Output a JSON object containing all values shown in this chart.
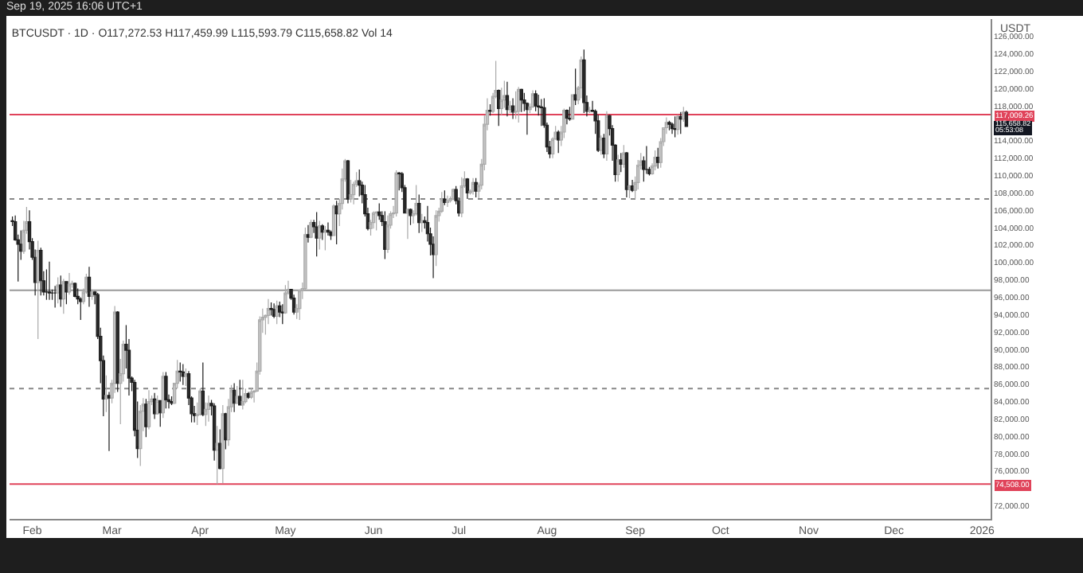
{
  "chart_data": {
    "type": "candlestick",
    "title": "BTCUSDT · 1D · O117,272.53 H117,459.99 L115,593.79 C115,658.82 Vol 14",
    "subtitle": "Sep 19, 2025 16:06 UTC+1",
    "ylabel": "USDT",
    "x": [
      "2025-01-25",
      "2025-01-26",
      "2025-01-27",
      "2025-01-28",
      "2025-01-29",
      "2025-01-30",
      "2025-01-31",
      "2025-02-01",
      "2025-02-02",
      "2025-02-03",
      "2025-02-04",
      "2025-02-05",
      "2025-02-06",
      "2025-02-07",
      "2025-02-08",
      "2025-02-09",
      "2025-02-10",
      "2025-02-11",
      "2025-02-12",
      "2025-02-13",
      "2025-02-14",
      "2025-02-15",
      "2025-02-16",
      "2025-02-17",
      "2025-02-18",
      "2025-02-19",
      "2025-02-20",
      "2025-02-21",
      "2025-02-22",
      "2025-02-23",
      "2025-02-24",
      "2025-02-25",
      "2025-02-26",
      "2025-02-27",
      "2025-02-28",
      "2025-03-01",
      "2025-03-02",
      "2025-03-03",
      "2025-03-04",
      "2025-03-05",
      "2025-03-06",
      "2025-03-07",
      "2025-03-08",
      "2025-03-09",
      "2025-03-10",
      "2025-03-11",
      "2025-03-12",
      "2025-03-13",
      "2025-03-14",
      "2025-03-15",
      "2025-03-16",
      "2025-03-17",
      "2025-03-18",
      "2025-03-19",
      "2025-03-20",
      "2025-03-21",
      "2025-03-22",
      "2025-03-23",
      "2025-03-24",
      "2025-03-25",
      "2025-03-26",
      "2025-03-27",
      "2025-03-28",
      "2025-03-29",
      "2025-03-30",
      "2025-03-31",
      "2025-04-01",
      "2025-04-02",
      "2025-04-03",
      "2025-04-04",
      "2025-04-05",
      "2025-04-06",
      "2025-04-07",
      "2025-04-08",
      "2025-04-09",
      "2025-04-10",
      "2025-04-11",
      "2025-04-12",
      "2025-04-13",
      "2025-04-14",
      "2025-04-15",
      "2025-04-16",
      "2025-04-17",
      "2025-04-18",
      "2025-04-19",
      "2025-04-20",
      "2025-04-21",
      "2025-04-22",
      "2025-04-23",
      "2025-04-24",
      "2025-04-25",
      "2025-04-26",
      "2025-04-27",
      "2025-04-28",
      "2025-04-29",
      "2025-04-30",
      "2025-05-01",
      "2025-05-02",
      "2025-05-03",
      "2025-05-04",
      "2025-05-05",
      "2025-05-06",
      "2025-05-07",
      "2025-05-08",
      "2025-05-09",
      "2025-05-10",
      "2025-05-11",
      "2025-05-12",
      "2025-05-13",
      "2025-05-14",
      "2025-05-15",
      "2025-05-16",
      "2025-05-17",
      "2025-05-18",
      "2025-05-19",
      "2025-05-20",
      "2025-05-21",
      "2025-05-22",
      "2025-05-23",
      "2025-05-24",
      "2025-05-25",
      "2025-05-26",
      "2025-05-27",
      "2025-05-28",
      "2025-05-29",
      "2025-05-30",
      "2025-05-31",
      "2025-06-01",
      "2025-06-02",
      "2025-06-03",
      "2025-06-04",
      "2025-06-05",
      "2025-06-06",
      "2025-06-07",
      "2025-06-08",
      "2025-06-09",
      "2025-06-10",
      "2025-06-11",
      "2025-06-12",
      "2025-06-13",
      "2025-06-14",
      "2025-06-15",
      "2025-06-16",
      "2025-06-17",
      "2025-06-18",
      "2025-06-19",
      "2025-06-20",
      "2025-06-21",
      "2025-06-22",
      "2025-06-23",
      "2025-06-24",
      "2025-06-25",
      "2025-06-26",
      "2025-06-27",
      "2025-06-28",
      "2025-06-29",
      "2025-06-30",
      "2025-07-01",
      "2025-07-02",
      "2025-07-03",
      "2025-07-04",
      "2025-07-05",
      "2025-07-06",
      "2025-07-07",
      "2025-07-08",
      "2025-07-09",
      "2025-07-10",
      "2025-07-11",
      "2025-07-12",
      "2025-07-13",
      "2025-07-14",
      "2025-07-15",
      "2025-07-16",
      "2025-07-17",
      "2025-07-18",
      "2025-07-19",
      "2025-07-20",
      "2025-07-21",
      "2025-07-22",
      "2025-07-23",
      "2025-07-24",
      "2025-07-25",
      "2025-07-26",
      "2025-07-27",
      "2025-07-28",
      "2025-07-29",
      "2025-07-30",
      "2025-07-31",
      "2025-08-01",
      "2025-08-02",
      "2025-08-03",
      "2025-08-04",
      "2025-08-05",
      "2025-08-06",
      "2025-08-07",
      "2025-08-08",
      "2025-08-09",
      "2025-08-10",
      "2025-08-11",
      "2025-08-12",
      "2025-08-13",
      "2025-08-14",
      "2025-08-15",
      "2025-08-16",
      "2025-08-17",
      "2025-08-18",
      "2025-08-19",
      "2025-08-20",
      "2025-08-21",
      "2025-08-22",
      "2025-08-23",
      "2025-08-24",
      "2025-08-25",
      "2025-08-26",
      "2025-08-27",
      "2025-08-28",
      "2025-08-29",
      "2025-08-30",
      "2025-08-31",
      "2025-09-01",
      "2025-09-02",
      "2025-09-03",
      "2025-09-04",
      "2025-09-05",
      "2025-09-06",
      "2025-09-07",
      "2025-09-08",
      "2025-09-09",
      "2025-09-10",
      "2025-09-11",
      "2025-09-12",
      "2025-09-13",
      "2025-09-14",
      "2025-09-15",
      "2025-09-16",
      "2025-09-17",
      "2025-09-18",
      "2025-09-19"
    ],
    "ohlc": [
      [
        104800,
        105300,
        104200,
        104700
      ],
      [
        104700,
        105400,
        102500,
        102600
      ],
      [
        102600,
        103200,
        97800,
        102100
      ],
      [
        102100,
        103700,
        100300,
        101300
      ],
      [
        101300,
        104800,
        101000,
        103700
      ],
      [
        103700,
        106400,
        103300,
        104700
      ],
      [
        104700,
        106000,
        101500,
        102400
      ],
      [
        102400,
        102800,
        100300,
        100600
      ],
      [
        100600,
        101500,
        96200,
        97700
      ],
      [
        97700,
        102500,
        91200,
        101400
      ],
      [
        101400,
        101700,
        96200,
        97900
      ],
      [
        97900,
        99000,
        96200,
        96600
      ],
      [
        96600,
        99200,
        95700,
        96600
      ],
      [
        96600,
        100100,
        95700,
        96500
      ],
      [
        96500,
        96900,
        95700,
        96500
      ],
      [
        96500,
        97300,
        94800,
        96500
      ],
      [
        96500,
        98300,
        95300,
        97400
      ],
      [
        97400,
        98500,
        94900,
        95800
      ],
      [
        95800,
        98100,
        94100,
        97800
      ],
      [
        97800,
        97800,
        95200,
        96600
      ],
      [
        96600,
        98800,
        96300,
        97500
      ],
      [
        97500,
        97900,
        97100,
        97600
      ],
      [
        97600,
        97700,
        96000,
        96100
      ],
      [
        96100,
        97000,
        95200,
        95800
      ],
      [
        95800,
        96000,
        93400,
        95500
      ],
      [
        95500,
        97000,
        95200,
        96600
      ],
      [
        96600,
        98700,
        96400,
        98300
      ],
      [
        98300,
        99500,
        94900,
        96100
      ],
      [
        96100,
        96900,
        95700,
        96600
      ],
      [
        96600,
        96700,
        95200,
        96300
      ],
      [
        96300,
        96500,
        91200,
        91500
      ],
      [
        91500,
        92500,
        86100,
        88700
      ],
      [
        88700,
        89300,
        82300,
        84300
      ],
      [
        84300,
        87000,
        82800,
        84700
      ],
      [
        84700,
        85100,
        78300,
        84400
      ],
      [
        84400,
        86500,
        83800,
        86100
      ],
      [
        86100,
        95000,
        85000,
        94300
      ],
      [
        94300,
        94400,
        85100,
        86100
      ],
      [
        86100,
        88900,
        81400,
        87200
      ],
      [
        87200,
        91000,
        86300,
        90600
      ],
      [
        90600,
        92800,
        87800,
        89900
      ],
      [
        89900,
        91200,
        84700,
        86700
      ],
      [
        86700,
        86900,
        85200,
        86200
      ],
      [
        86200,
        86500,
        80000,
        80700
      ],
      [
        80700,
        84000,
        77500,
        78600
      ],
      [
        78600,
        83600,
        76600,
        82900
      ],
      [
        82900,
        84400,
        80600,
        83700
      ],
      [
        83700,
        84300,
        79900,
        81100
      ],
      [
        81100,
        85300,
        80800,
        84000
      ],
      [
        84000,
        84700,
        83600,
        84300
      ],
      [
        84300,
        85000,
        82000,
        82600
      ],
      [
        82600,
        84700,
        82500,
        84100
      ],
      [
        84100,
        84100,
        81100,
        82700
      ],
      [
        82700,
        87400,
        82100,
        86900
      ],
      [
        86900,
        87400,
        83200,
        84200
      ],
      [
        84200,
        84800,
        83200,
        84000
      ],
      [
        84000,
        84600,
        83600,
        83800
      ],
      [
        83800,
        86100,
        83700,
        86100
      ],
      [
        86100,
        88800,
        85500,
        87500
      ],
      [
        87500,
        88500,
        86300,
        87400
      ],
      [
        87400,
        88300,
        85900,
        86900
      ],
      [
        86900,
        87800,
        85800,
        87200
      ],
      [
        87200,
        87500,
        83600,
        84400
      ],
      [
        84400,
        84600,
        81600,
        82600
      ],
      [
        82600,
        83500,
        81600,
        82400
      ],
      [
        82400,
        83900,
        81300,
        82500
      ],
      [
        82500,
        85500,
        82400,
        85200
      ],
      [
        85200,
        88500,
        82300,
        82500
      ],
      [
        82500,
        83900,
        81200,
        83100
      ],
      [
        83100,
        84700,
        81700,
        83800
      ],
      [
        83800,
        84200,
        82400,
        83500
      ],
      [
        83500,
        83800,
        77200,
        78400
      ],
      [
        78400,
        81200,
        74500,
        79200
      ],
      [
        79200,
        80800,
        76200,
        76300
      ],
      [
        76300,
        83600,
        74600,
        82600
      ],
      [
        82600,
        82700,
        78500,
        79600
      ],
      [
        79600,
        84300,
        78900,
        83400
      ],
      [
        83400,
        85900,
        82800,
        85300
      ],
      [
        85300,
        86100,
        82800,
        83800
      ],
      [
        83800,
        85800,
        83700,
        84600
      ],
      [
        84600,
        86500,
        83600,
        83600
      ],
      [
        83600,
        86500,
        83100,
        84000
      ],
      [
        84000,
        85500,
        83800,
        84900
      ],
      [
        84900,
        85100,
        84300,
        84500
      ],
      [
        84500,
        85600,
        84300,
        85100
      ],
      [
        85100,
        85300,
        83900,
        85200
      ],
      [
        85200,
        88500,
        85100,
        87500
      ],
      [
        87500,
        93800,
        87100,
        93400
      ],
      [
        93400,
        94700,
        91900,
        93700
      ],
      [
        93700,
        94000,
        91700,
        93900
      ],
      [
        93900,
        95800,
        92900,
        94700
      ],
      [
        94700,
        95400,
        93900,
        94600
      ],
      [
        94600,
        95300,
        93600,
        93800
      ],
      [
        93800,
        95600,
        92900,
        95000
      ],
      [
        95000,
        95500,
        93700,
        94300
      ],
      [
        94300,
        95200,
        92900,
        94200
      ],
      [
        94200,
        97400,
        94100,
        96500
      ],
      [
        96500,
        97900,
        96300,
        96900
      ],
      [
        96900,
        96900,
        95700,
        95900
      ],
      [
        95900,
        96300,
        94000,
        94300
      ],
      [
        94300,
        95200,
        93500,
        94700
      ],
      [
        94700,
        96900,
        93400,
        96800
      ],
      [
        96800,
        97700,
        95800,
        97000
      ],
      [
        97000,
        104000,
        96900,
        103200
      ],
      [
        103200,
        104300,
        102300,
        102900
      ],
      [
        102900,
        104900,
        102800,
        104600
      ],
      [
        104600,
        104900,
        103400,
        104100
      ],
      [
        104100,
        105800,
        100700,
        102800
      ],
      [
        102800,
        104800,
        101500,
        104200
      ],
      [
        104200,
        104400,
        102600,
        103500
      ],
      [
        103500,
        104200,
        101400,
        103700
      ],
      [
        103700,
        104600,
        103100,
        103500
      ],
      [
        103500,
        103700,
        102600,
        103100
      ],
      [
        103100,
        106700,
        103100,
        106500
      ],
      [
        106500,
        107100,
        102100,
        105600
      ],
      [
        105600,
        107300,
        104200,
        106800
      ],
      [
        106800,
        110800,
        106100,
        109600
      ],
      [
        109600,
        111900,
        109300,
        111700
      ],
      [
        111700,
        111800,
        106800,
        107300
      ],
      [
        107300,
        109500,
        106900,
        107800
      ],
      [
        107800,
        109300,
        106700,
        109000
      ],
      [
        109000,
        110400,
        108700,
        109400
      ],
      [
        109400,
        110700,
        107600,
        108900
      ],
      [
        108900,
        109300,
        106800,
        107800
      ],
      [
        107800,
        108900,
        105300,
        105600
      ],
      [
        105600,
        106300,
        103700,
        103900
      ],
      [
        103900,
        104900,
        103100,
        104600
      ],
      [
        104600,
        105900,
        103900,
        105700
      ],
      [
        105700,
        105900,
        103700,
        105800
      ],
      [
        105800,
        106800,
        104900,
        105400
      ],
      [
        105400,
        105900,
        104200,
        104700
      ],
      [
        104700,
        105900,
        100400,
        101500
      ],
      [
        101500,
        105400,
        101100,
        104300
      ],
      [
        104300,
        105900,
        103900,
        105600
      ],
      [
        105600,
        106500,
        105100,
        105700
      ],
      [
        105700,
        110600,
        105300,
        110300
      ],
      [
        110300,
        110400,
        108300,
        110200
      ],
      [
        110200,
        110400,
        108100,
        108600
      ],
      [
        108600,
        108900,
        105700,
        105700
      ],
      [
        105700,
        106200,
        102700,
        106100
      ],
      [
        106100,
        106200,
        104300,
        105400
      ],
      [
        105400,
        106000,
        104500,
        105600
      ],
      [
        105600,
        108900,
        105400,
        106800
      ],
      [
        106800,
        107800,
        103400,
        104600
      ],
      [
        104600,
        105600,
        103500,
        104800
      ],
      [
        104800,
        105300,
        103900,
        104600
      ],
      [
        104600,
        106500,
        102400,
        103300
      ],
      [
        103300,
        104000,
        100800,
        102100
      ],
      [
        102100,
        103000,
        98200,
        100900
      ],
      [
        100900,
        106000,
        99600,
        105400
      ],
      [
        105400,
        106300,
        104700,
        105900
      ],
      [
        105900,
        108100,
        105700,
        107300
      ],
      [
        107300,
        108300,
        106600,
        106900
      ],
      [
        106900,
        107700,
        106400,
        107100
      ],
      [
        107100,
        107600,
        106900,
        107300
      ],
      [
        107300,
        108500,
        107200,
        108400
      ],
      [
        108400,
        108800,
        106700,
        107100
      ],
      [
        107100,
        107500,
        105300,
        105700
      ],
      [
        105700,
        109800,
        105200,
        108800
      ],
      [
        108800,
        110500,
        108600,
        109600
      ],
      [
        109600,
        109700,
        107300,
        108000
      ],
      [
        108000,
        108400,
        107800,
        108200
      ],
      [
        108200,
        109700,
        107800,
        109200
      ],
      [
        109200,
        109700,
        107500,
        108200
      ],
      [
        108200,
        109200,
        107400,
        108900
      ],
      [
        108900,
        111900,
        108400,
        111300
      ],
      [
        111300,
        116900,
        110600,
        115900
      ],
      [
        115900,
        118900,
        115200,
        117500
      ],
      [
        117500,
        118200,
        116900,
        117400
      ],
      [
        117400,
        119500,
        117200,
        119100
      ],
      [
        119100,
        123200,
        118900,
        119800
      ],
      [
        119800,
        119900,
        115700,
        117700
      ],
      [
        117700,
        120100,
        117000,
        118700
      ],
      [
        118700,
        120900,
        117800,
        119200
      ],
      [
        119200,
        120800,
        116800,
        117600
      ],
      [
        117600,
        118600,
        117200,
        118000
      ],
      [
        118000,
        118900,
        116500,
        117300
      ],
      [
        117300,
        119700,
        116500,
        117400
      ],
      [
        117400,
        120200,
        116100,
        119900
      ],
      [
        119900,
        120000,
        117300,
        118700
      ],
      [
        118700,
        119500,
        117400,
        118300
      ],
      [
        118300,
        118400,
        114700,
        117600
      ],
      [
        117600,
        118300,
        117200,
        117900
      ],
      [
        117900,
        119800,
        117800,
        119400
      ],
      [
        119400,
        119800,
        117400,
        118000
      ],
      [
        118000,
        119300,
        116900,
        117900
      ],
      [
        117900,
        118800,
        115700,
        117800
      ],
      [
        117800,
        118900,
        115500,
        115800
      ],
      [
        115800,
        116100,
        112700,
        113300
      ],
      [
        113300,
        114000,
        112000,
        112500
      ],
      [
        112500,
        114400,
        112000,
        114200
      ],
      [
        114200,
        115700,
        114100,
        115000
      ],
      [
        115000,
        115200,
        112600,
        114100
      ],
      [
        114100,
        115700,
        113400,
        115000
      ],
      [
        115000,
        117700,
        114300,
        117500
      ],
      [
        117500,
        117600,
        115900,
        116600
      ],
      [
        116600,
        117900,
        116300,
        116500
      ],
      [
        116500,
        119300,
        116500,
        119300
      ],
      [
        119300,
        122300,
        118100,
        118700
      ],
      [
        118700,
        120300,
        118200,
        120100
      ],
      [
        120100,
        123700,
        118900,
        123300
      ],
      [
        123300,
        124500,
        117200,
        118400
      ],
      [
        118400,
        119200,
        116800,
        117400
      ],
      [
        117400,
        117900,
        117200,
        117500
      ],
      [
        117500,
        118600,
        117300,
        117400
      ],
      [
        117400,
        117600,
        114800,
        116300
      ],
      [
        116300,
        117000,
        112700,
        112900
      ],
      [
        112900,
        114600,
        112400,
        114300
      ],
      [
        114300,
        114800,
        112000,
        112500
      ],
      [
        112500,
        117400,
        111700,
        116900
      ],
      [
        116900,
        117000,
        114600,
        115400
      ],
      [
        115400,
        115800,
        111700,
        113500
      ],
      [
        113500,
        113600,
        109300,
        110100
      ],
      [
        110100,
        112400,
        109300,
        111800
      ],
      [
        111800,
        112600,
        110400,
        111300
      ],
      [
        111300,
        113500,
        110900,
        112600
      ],
      [
        112600,
        112700,
        107500,
        108400
      ],
      [
        108400,
        108900,
        107400,
        108800
      ],
      [
        108800,
        109500,
        108100,
        108300
      ],
      [
        108300,
        109900,
        107300,
        109200
      ],
      [
        109200,
        111800,
        108400,
        111200
      ],
      [
        111200,
        112600,
        110700,
        111700
      ],
      [
        111700,
        112200,
        109300,
        110700
      ],
      [
        110700,
        113400,
        110200,
        110700
      ],
      [
        110700,
        111000,
        110000,
        110200
      ],
      [
        110200,
        111400,
        110100,
        111100
      ],
      [
        111100,
        112900,
        110600,
        112100
      ],
      [
        112100,
        113200,
        110800,
        111500
      ],
      [
        111500,
        114300,
        110900,
        113900
      ],
      [
        113900,
        115500,
        113400,
        115500
      ],
      [
        115500,
        116700,
        114800,
        116100
      ],
      [
        116100,
        116300,
        115200,
        115900
      ],
      [
        115900,
        116100,
        114800,
        115400
      ],
      [
        115400,
        116800,
        114400,
        115300
      ],
      [
        115300,
        117000,
        114700,
        116800
      ],
      [
        116800,
        117300,
        114800,
        116500
      ],
      [
        116500,
        117900,
        116200,
        117300
      ],
      [
        117272.53,
        117459.99,
        115593.79,
        115658.82
      ]
    ],
    "xlim": [
      "2025-01-24",
      "2026-01-04"
    ],
    "xticks": [
      {
        "value": "2025-02-01",
        "label": "Feb"
      },
      {
        "value": "2025-03-01",
        "label": "Mar"
      },
      {
        "value": "2025-04-01",
        "label": "Apr"
      },
      {
        "value": "2025-05-01",
        "label": "May"
      },
      {
        "value": "2025-06-01",
        "label": "Jun"
      },
      {
        "value": "2025-07-01",
        "label": "Jul"
      },
      {
        "value": "2025-08-01",
        "label": "Aug"
      },
      {
        "value": "2025-09-01",
        "label": "Sep"
      },
      {
        "value": "2025-10-01",
        "label": "Oct"
      },
      {
        "value": "2025-11-01",
        "label": "Nov"
      },
      {
        "value": "2025-12-01",
        "label": "Dec"
      },
      {
        "value": "2026-01-01",
        "label": "2026"
      }
    ],
    "ylim": [
      70500,
      128000
    ],
    "yticks": [
      {
        "value": 72000,
        "label": "72,000.00"
      },
      {
        "value": 76000,
        "label": "76,000.00"
      },
      {
        "value": 78000,
        "label": "78,000.00"
      },
      {
        "value": 80000,
        "label": "80,000.00"
      },
      {
        "value": 82000,
        "label": "82,000.00"
      },
      {
        "value": 84000,
        "label": "84,000.00"
      },
      {
        "value": 86000,
        "label": "86,000.00"
      },
      {
        "value": 88000,
        "label": "88,000.00"
      },
      {
        "value": 90000,
        "label": "90,000.00"
      },
      {
        "value": 92000,
        "label": "92,000.00"
      },
      {
        "value": 94000,
        "label": "94,000.00"
      },
      {
        "value": 96000,
        "label": "96,000.00"
      },
      {
        "value": 98000,
        "label": "98,000.00"
      },
      {
        "value": 100000,
        "label": "100,000.00"
      },
      {
        "value": 102000,
        "label": "102,000.00"
      },
      {
        "value": 104000,
        "label": "104,000.00"
      },
      {
        "value": 106000,
        "label": "106,000.00"
      },
      {
        "value": 108000,
        "label": "108,000.00"
      },
      {
        "value": 110000,
        "label": "110,000.00"
      },
      {
        "value": 112000,
        "label": "112,000.00"
      },
      {
        "value": 114000,
        "label": "114,000.00"
      },
      {
        "value": 118000,
        "label": "118,000.00"
      },
      {
        "value": 120000,
        "label": "120,000.00"
      },
      {
        "value": 122000,
        "label": "122,000.00"
      },
      {
        "value": 124000,
        "label": "124,000.00"
      },
      {
        "value": 126000,
        "label": "126,000.00"
      }
    ],
    "ref_lines": [
      {
        "axis": "y",
        "value": 117009.26,
        "label": "117,009.26",
        "color": "#e0435a",
        "line_style": "solid"
      },
      {
        "axis": "y",
        "value": 74508,
        "label": "74,508.00",
        "color": "#e0435a",
        "line_style": "solid"
      },
      {
        "axis": "y",
        "value": 107300,
        "color": "#888888",
        "line_style": "dotted"
      },
      {
        "axis": "y",
        "value": 96800,
        "color": "#999999",
        "line_style": "solid"
      },
      {
        "axis": "y",
        "value": 85500,
        "color": "#888888",
        "line_style": "dotted"
      }
    ],
    "annotations": [
      "115,658.82\n05:53:08"
    ]
  }
}
